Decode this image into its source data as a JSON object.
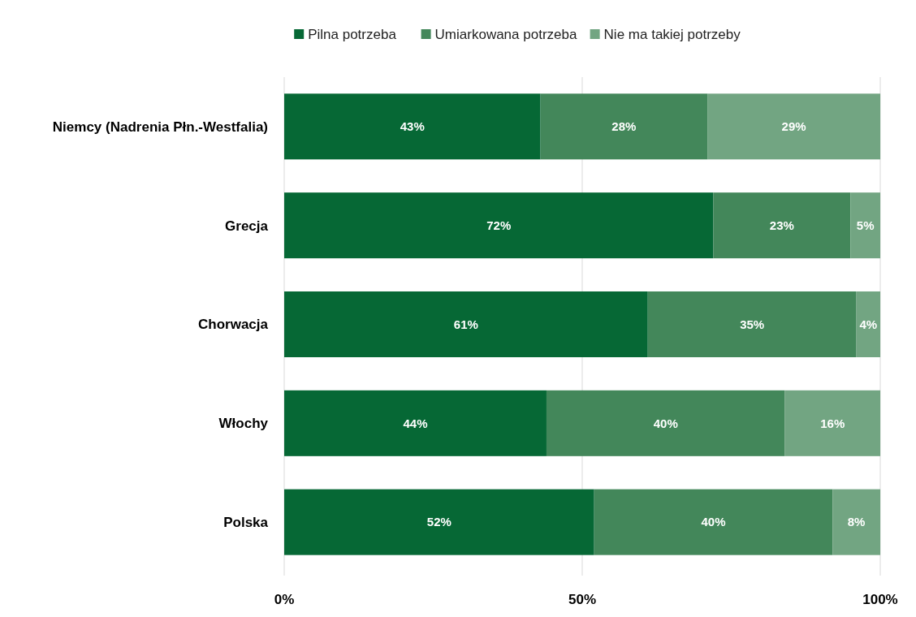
{
  "chart_data": {
    "type": "bar",
    "orientation": "horizontal",
    "stacked": true,
    "categories": [
      "Niemcy (Nadrenia Płn.-Westfalia)",
      "Grecja",
      "Chorwacja",
      "Włochy",
      "Polska"
    ],
    "series": [
      {
        "name": "Pilna potrzeba",
        "color": "#066835",
        "values": [
          43,
          72,
          61,
          44,
          52
        ],
        "value_labels": [
          "43%",
          "72%",
          "61%",
          "44%",
          "52%"
        ]
      },
      {
        "name": "Umiarkowana potrzeba",
        "color": "#43875a",
        "values": [
          28,
          23,
          35,
          40,
          40
        ],
        "value_labels": [
          "28%",
          "23%",
          "35%",
          "40%",
          "40%"
        ]
      },
      {
        "name": "Nie ma takiej potrzeby",
        "color": "#72a582",
        "values": [
          29,
          5,
          4,
          16,
          8
        ],
        "value_labels": [
          "29%",
          "5%",
          "4%",
          "16%",
          "8%"
        ]
      }
    ],
    "xlim": [
      0,
      100
    ],
    "xticks": [
      {
        "value": 0,
        "label": "0%"
      },
      {
        "value": 50,
        "label": "50%"
      },
      {
        "value": 100,
        "label": "100%"
      }
    ],
    "grid": "x",
    "legend": "top"
  }
}
